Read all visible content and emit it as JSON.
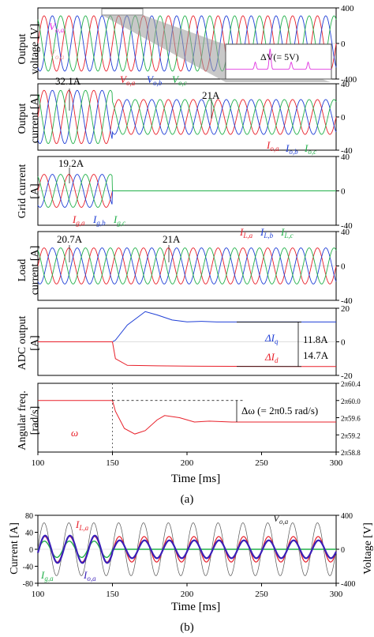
{
  "figure": {
    "x_axis": {
      "label": "Time [ms]",
      "ticks": [
        100,
        150,
        200,
        250,
        300
      ],
      "range": [
        100,
        300
      ]
    },
    "sublabel_a": "(a)",
    "sublabel_b": "(b)",
    "colors": {
      "phase_a": "#e8202a",
      "phase_b": "#1f3fd6",
      "phase_c": "#22b04a",
      "phase_b_bold": "#3a1fb8",
      "voltage_b": "#555555",
      "frame": "#000000"
    }
  },
  "chart_data": [
    {
      "id": "output_voltage",
      "type": "line",
      "ylabel": "Output voltage [V]",
      "ylim": [
        -400,
        400
      ],
      "yticks": [
        400,
        0,
        -400
      ],
      "freq_hz": 60,
      "series": [
        {
          "name": "Vo,a",
          "amplitude": 311,
          "phase_deg": 0
        },
        {
          "name": "Vo,b",
          "amplitude": 311,
          "phase_deg": -120
        },
        {
          "name": "Vo,c",
          "amplitude": 311,
          "phase_deg": 120
        }
      ],
      "legend": {
        "Vo,a": "V_{o,a}",
        "Vo,b": "V_{o,b}",
        "Vo,c": "V_{o,c}"
      },
      "annotations": {
        "delta_v": "ΔV(= 5V)"
      }
    },
    {
      "id": "output_current",
      "type": "line",
      "ylabel": "Output current [A]",
      "ylim": [
        -40,
        40
      ],
      "yticks": [
        40,
        0,
        -40
      ],
      "freq_hz": 60,
      "series": [
        {
          "name": "Io,a",
          "amplitude_before": 32.1,
          "amplitude_after": 21,
          "phase_deg": 0
        },
        {
          "name": "Io,b",
          "amplitude_before": 32.1,
          "amplitude_after": 21,
          "phase_deg": -120
        },
        {
          "name": "Io,c",
          "amplitude_before": 32.1,
          "amplitude_after": 21,
          "phase_deg": 120
        }
      ],
      "annotations": {
        "peak_before": "32.1A",
        "peak_after": "21A"
      }
    },
    {
      "id": "grid_current",
      "type": "line",
      "ylabel": "Grid current [A]",
      "ylim": [
        -40,
        40
      ],
      "yticks": [
        40,
        0,
        -40
      ],
      "freq_hz": 60,
      "series": [
        {
          "name": "Ig,a",
          "amplitude_before": 19.2,
          "amplitude_after": 0,
          "phase_deg": 0
        },
        {
          "name": "Ig,b",
          "amplitude_before": 19.2,
          "amplitude_after": 0,
          "phase_deg": -120
        },
        {
          "name": "Ig,c",
          "amplitude_before": 19.2,
          "amplitude_after": 0,
          "phase_deg": 120
        }
      ],
      "annotations": {
        "peak": "19.2A"
      }
    },
    {
      "id": "load_current",
      "type": "line",
      "ylabel": "Load current [A]",
      "ylim": [
        -40,
        40
      ],
      "yticks": [
        40,
        0,
        -40
      ],
      "freq_hz": 60,
      "series": [
        {
          "name": "IL,a",
          "amplitude": 21,
          "phase_deg": 0
        },
        {
          "name": "IL,b",
          "amplitude": 21,
          "phase_deg": -120
        },
        {
          "name": "IL,c",
          "amplitude": 21,
          "phase_deg": 120
        }
      ],
      "annotations": {
        "peak_before": "20.7A",
        "peak_after": "21A"
      }
    },
    {
      "id": "adc_output",
      "type": "line",
      "ylabel": "ADC output [A]",
      "ylim": [
        -20,
        20
      ],
      "yticks": [
        20,
        0,
        -20
      ],
      "series": [
        {
          "name": "ΔIq",
          "x": [
            100,
            150,
            152,
            160,
            172,
            180,
            190,
            200,
            210,
            220,
            240,
            270,
            300
          ],
          "y": [
            0,
            0,
            1,
            10,
            18,
            16,
            13,
            11.9,
            12.2,
            11.8,
            11.8,
            11.8,
            11.8
          ]
        },
        {
          "name": "ΔId",
          "x": [
            100,
            150,
            152,
            160,
            180,
            200,
            230,
            270,
            300
          ],
          "y": [
            0,
            0,
            -10,
            -14,
            -14.3,
            -14.5,
            -14.6,
            -14.7,
            -14.7
          ]
        }
      ],
      "annotations": {
        "iq_value": "11.8A",
        "id_value": "14.7A"
      }
    },
    {
      "id": "angular_freq",
      "type": "line",
      "ylabel": "Angular freq. [rad/s]",
      "ylim": [
        58.8,
        60.4
      ],
      "yticks": [
        60.4,
        60.0,
        59.6,
        59.2,
        58.8
      ],
      "ytick_labels": [
        "2π60.4",
        "2π60.0",
        "2π59.6",
        "2π59.2",
        "2π58.8"
      ],
      "reference_line": 60.0,
      "series": [
        {
          "name": "ω",
          "x": [
            100,
            150,
            152,
            158,
            165,
            172,
            180,
            185,
            195,
            205,
            215,
            230,
            260,
            300
          ],
          "y": [
            60.0,
            60.0,
            59.75,
            59.35,
            59.22,
            59.3,
            59.55,
            59.65,
            59.6,
            59.5,
            59.52,
            59.5,
            59.5,
            59.5
          ]
        }
      ],
      "annotations": {
        "delta_omega": "Δω (= 2π0.5 rad/s)"
      }
    },
    {
      "id": "panel_b",
      "type": "line",
      "ylabel_left": "Current [A]",
      "ylabel_right": "Voltage [V]",
      "ylim_left": [
        -80,
        80
      ],
      "yticks_left": [
        80,
        40,
        0,
        -40,
        -80
      ],
      "ylim_right": [
        -400,
        400
      ],
      "yticks_right": [
        400,
        0,
        -400
      ],
      "freq_hz": 60,
      "series": [
        {
          "name": "Vo,a",
          "axis": "right",
          "amplitude": 311,
          "phase_deg": 0
        },
        {
          "name": "IL,a",
          "axis": "left",
          "amplitude": 30,
          "phase_deg": -10
        },
        {
          "name": "Ig,a",
          "axis": "left",
          "amplitude_before": 19.2,
          "amplitude_after": 0,
          "phase_deg": -5
        },
        {
          "name": "Io,a",
          "axis": "left",
          "amplitude_before": 32.1,
          "amplitude_after": 21,
          "phase_deg": -15
        }
      ]
    }
  ]
}
